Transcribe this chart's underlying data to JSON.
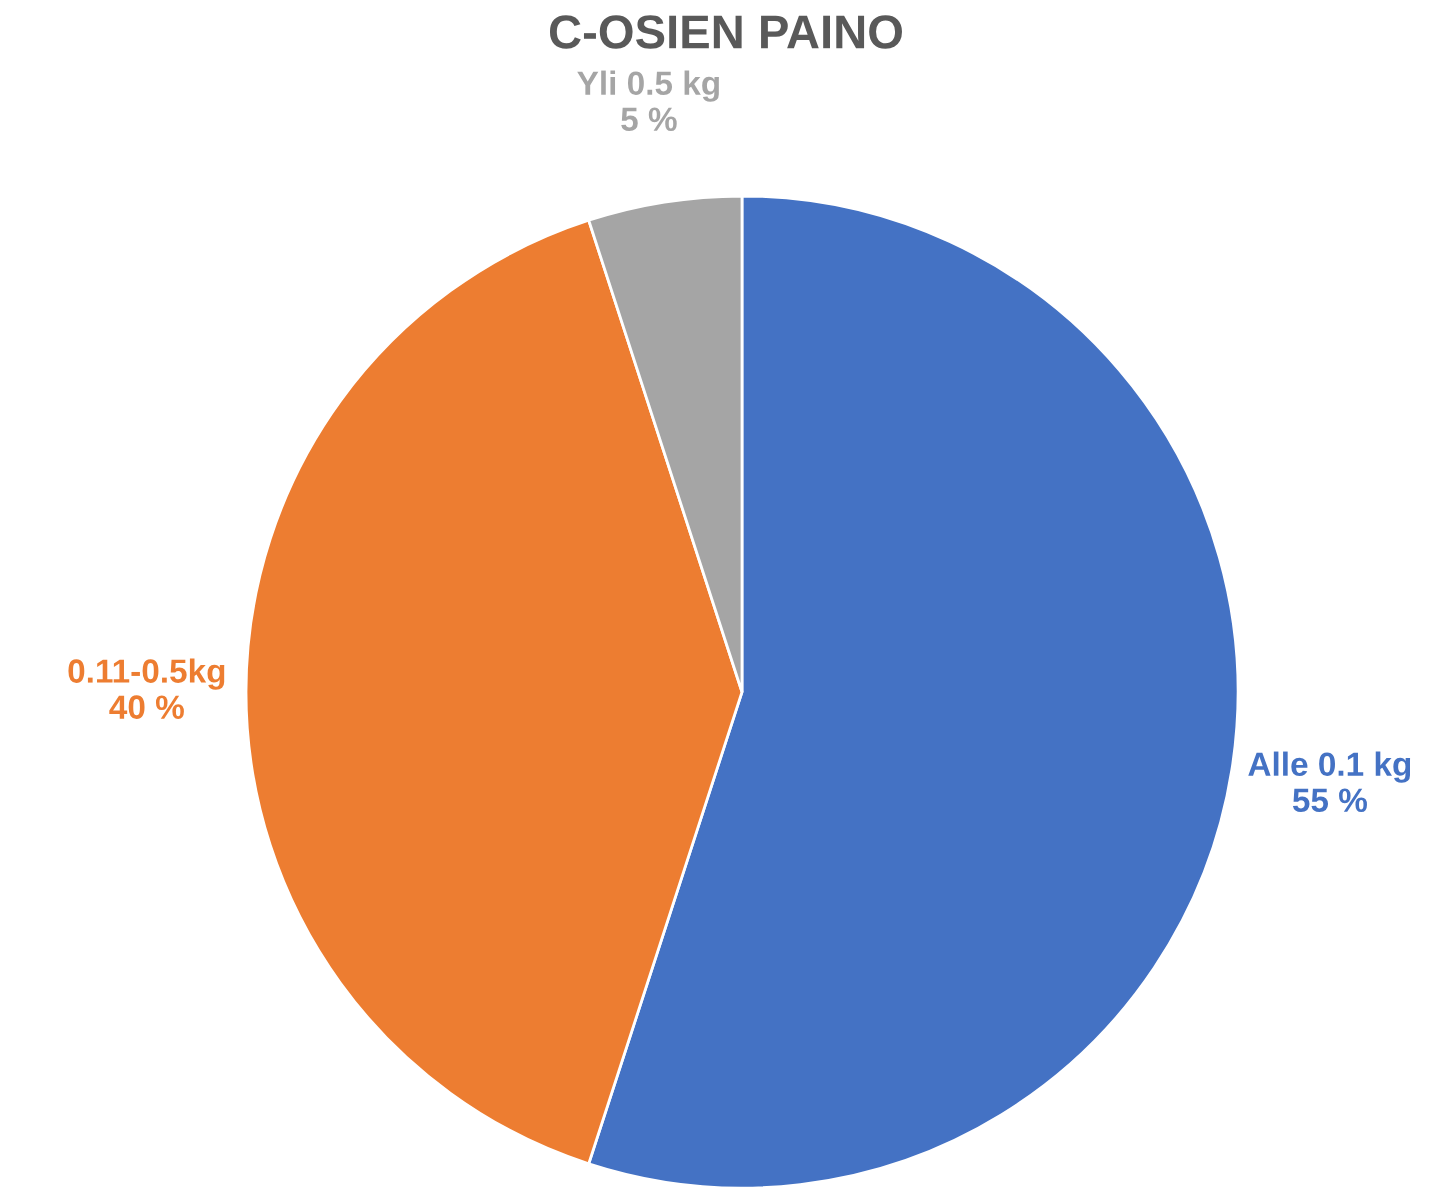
{
  "chart_data": {
    "type": "pie",
    "title": "C-OSIEN PAINO",
    "categories": [
      "Alle 0.1 kg",
      "0.11-0.5kg",
      "Yli 0.5 kg"
    ],
    "values": [
      55,
      40,
      5
    ],
    "value_labels": [
      "55 %",
      "40 %",
      "5 %"
    ],
    "colors": [
      "#4472c4",
      "#ed7d31",
      "#a5a5a5"
    ],
    "legend": false
  }
}
